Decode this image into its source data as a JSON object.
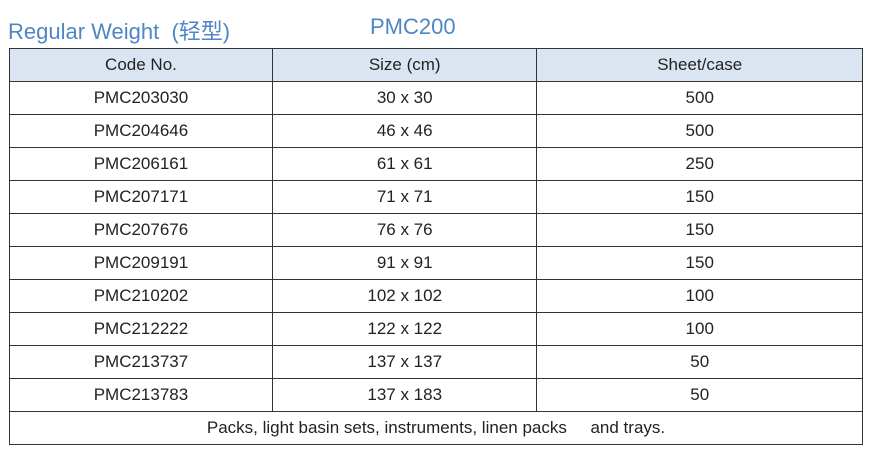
{
  "header": {
    "title": "Regular Weight  (轻型)",
    "model": "PMC200"
  },
  "table": {
    "columns": [
      "Code No.",
      "Size (cm)",
      "Sheet/case"
    ],
    "rows": [
      [
        "PMC203030",
        "30 x 30",
        500
      ],
      [
        "PMC204646",
        "46 x 46",
        500
      ],
      [
        "PMC206161",
        "61 x 61",
        250
      ],
      [
        "PMC207171",
        "71 x 71",
        150
      ],
      [
        "PMC207676",
        "76 x 76",
        150
      ],
      [
        "PMC209191",
        "91 x 91",
        150
      ],
      [
        "PMC210202",
        "102 x 102",
        100
      ],
      [
        "PMC212222",
        "122 x 122",
        100
      ],
      [
        "PMC213737",
        "137 x 137",
        50
      ],
      [
        "PMC213783",
        "137 x 183",
        50
      ]
    ],
    "footer": "Packs, light basin sets, instruments, linen packs     and trays."
  }
}
